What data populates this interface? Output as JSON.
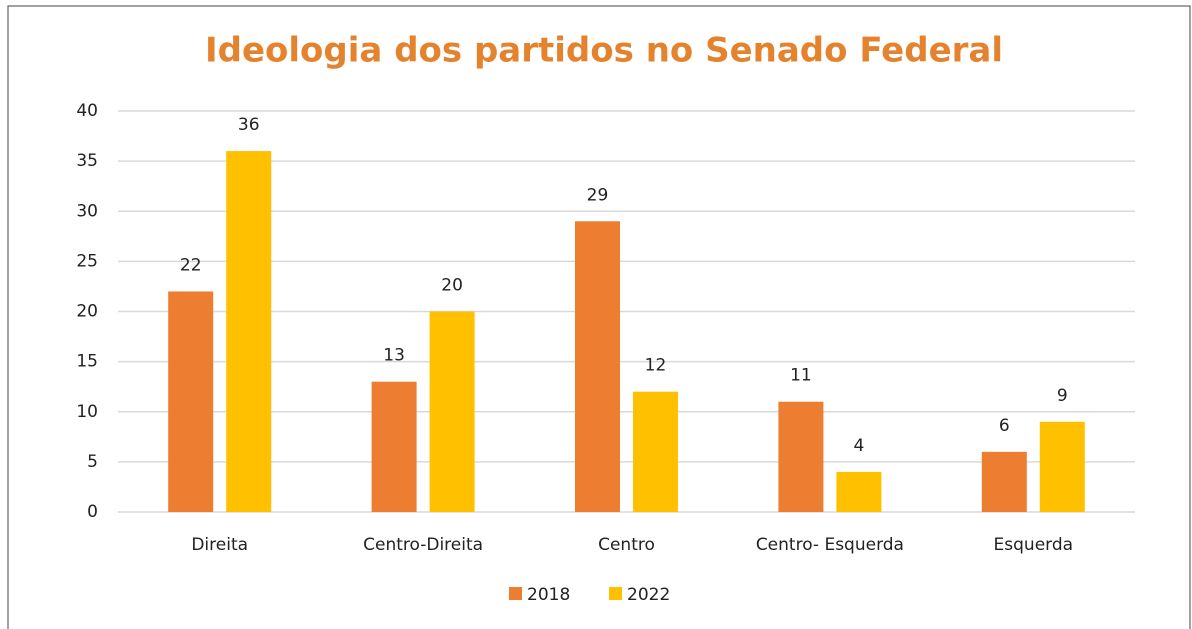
{
  "chart_data": {
    "type": "bar",
    "title": "Ideologia dos partidos no Senado Federal",
    "categories": [
      "Direita",
      "Centro-Direita",
      "Centro",
      "Centro- Esquerda",
      "Esquerda"
    ],
    "series": [
      {
        "name": "2018",
        "color": "#ed7d31",
        "values": [
          22,
          13,
          29,
          11,
          6
        ]
      },
      {
        "name": "2022",
        "color": "#ffc000",
        "values": [
          36,
          20,
          12,
          4,
          9
        ]
      }
    ],
    "ylim": [
      0,
      40
    ],
    "yticks": [
      0,
      5,
      10,
      15,
      20,
      25,
      30,
      35,
      40
    ],
    "grid": true,
    "legend": "bottom"
  }
}
